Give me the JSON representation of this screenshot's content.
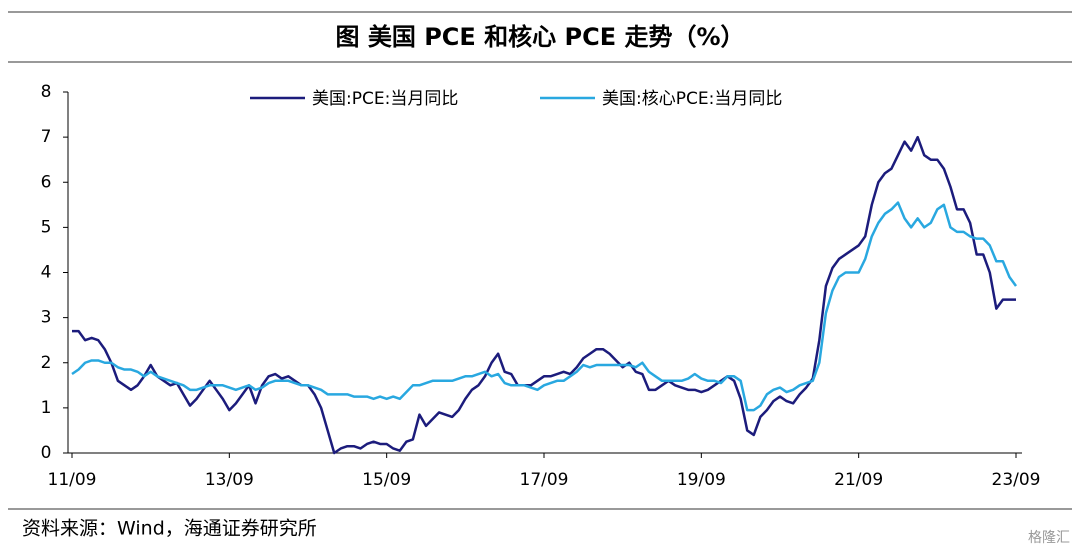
{
  "chart_data": {
    "type": "line",
    "title": "图  美国 PCE 和核心 PCE 走势（%）",
    "source": "资料来源：Wind，海通证券研究所",
    "watermark": "格隆汇",
    "categories": [
      "11/09",
      null,
      null,
      null,
      null,
      null,
      null,
      null,
      null,
      null,
      null,
      null,
      null,
      null,
      null,
      null,
      null,
      null,
      null,
      null,
      null,
      null,
      null,
      null,
      "13/09",
      null,
      null,
      null,
      null,
      null,
      null,
      null,
      null,
      null,
      null,
      null,
      null,
      null,
      null,
      null,
      null,
      null,
      null,
      null,
      null,
      null,
      null,
      null,
      "15/09",
      null,
      null,
      null,
      null,
      null,
      null,
      null,
      null,
      null,
      null,
      null,
      null,
      null,
      null,
      null,
      null,
      null,
      null,
      null,
      null,
      null,
      null,
      null,
      "17/09",
      null,
      null,
      null,
      null,
      null,
      null,
      null,
      null,
      null,
      null,
      null,
      null,
      null,
      null,
      null,
      null,
      null,
      null,
      null,
      null,
      null,
      null,
      null,
      "19/09",
      null,
      null,
      null,
      null,
      null,
      null,
      null,
      null,
      null,
      null,
      null,
      null,
      null,
      null,
      null,
      null,
      null,
      null,
      null,
      null,
      null,
      null,
      null,
      "21/09",
      null,
      null,
      null,
      null,
      null,
      null,
      null,
      null,
      null,
      null,
      null,
      null,
      null,
      null,
      null,
      null,
      null,
      null,
      null,
      null,
      null,
      null,
      null,
      "23/09"
    ],
    "series": [
      {
        "name": "美国:PCE:当月同比",
        "color": "#1c1c7c",
        "values": [
          2.7,
          2.7,
          2.5,
          2.55,
          2.5,
          2.3,
          2.0,
          1.6,
          1.5,
          1.4,
          1.5,
          1.7,
          1.95,
          1.7,
          1.6,
          1.5,
          1.55,
          1.3,
          1.05,
          1.2,
          1.4,
          1.6,
          1.4,
          1.2,
          0.95,
          1.1,
          1.3,
          1.5,
          1.1,
          1.5,
          1.7,
          1.75,
          1.65,
          1.7,
          1.6,
          1.5,
          1.5,
          1.3,
          1.0,
          0.5,
          0.0,
          0.1,
          0.15,
          0.15,
          0.1,
          0.2,
          0.25,
          0.2,
          0.2,
          0.1,
          0.05,
          0.25,
          0.3,
          0.85,
          0.6,
          0.75,
          0.9,
          0.85,
          0.8,
          0.95,
          1.2,
          1.4,
          1.5,
          1.7,
          2.0,
          2.2,
          1.8,
          1.75,
          1.5,
          1.5,
          1.5,
          1.6,
          1.7,
          1.7,
          1.75,
          1.8,
          1.75,
          1.9,
          2.1,
          2.2,
          2.3,
          2.3,
          2.2,
          2.05,
          1.9,
          2.0,
          1.8,
          1.75,
          1.4,
          1.4,
          1.5,
          1.6,
          1.5,
          1.45,
          1.4,
          1.4,
          1.35,
          1.4,
          1.5,
          1.6,
          1.7,
          1.6,
          1.2,
          0.5,
          0.4,
          0.8,
          0.95,
          1.15,
          1.25,
          1.15,
          1.1,
          1.3,
          1.45,
          1.65,
          2.5,
          3.7,
          4.1,
          4.3,
          4.4,
          4.5,
          4.6,
          4.8,
          5.5,
          6.0,
          6.2,
          6.3,
          6.6,
          6.9,
          6.7,
          7.0,
          6.6,
          6.5,
          6.5,
          6.3,
          5.9,
          5.4,
          5.4,
          5.1,
          4.4,
          4.4,
          4.0,
          3.2,
          3.4,
          3.4,
          3.4
        ]
      },
      {
        "name": "美国:核心PCE:当月同比",
        "color": "#29a8e0",
        "values": [
          1.75,
          1.85,
          2.0,
          2.05,
          2.05,
          2.0,
          2.0,
          1.9,
          1.85,
          1.85,
          1.8,
          1.7,
          1.8,
          1.7,
          1.65,
          1.6,
          1.55,
          1.5,
          1.4,
          1.4,
          1.45,
          1.5,
          1.5,
          1.5,
          1.45,
          1.4,
          1.45,
          1.5,
          1.4,
          1.45,
          1.55,
          1.6,
          1.6,
          1.6,
          1.55,
          1.5,
          1.5,
          1.45,
          1.4,
          1.3,
          1.3,
          1.3,
          1.3,
          1.25,
          1.25,
          1.25,
          1.2,
          1.25,
          1.2,
          1.25,
          1.2,
          1.35,
          1.5,
          1.5,
          1.55,
          1.6,
          1.6,
          1.6,
          1.6,
          1.65,
          1.7,
          1.7,
          1.75,
          1.8,
          1.7,
          1.75,
          1.55,
          1.5,
          1.5,
          1.5,
          1.45,
          1.4,
          1.5,
          1.55,
          1.6,
          1.6,
          1.7,
          1.8,
          1.95,
          1.9,
          1.95,
          1.95,
          1.95,
          1.95,
          1.95,
          1.95,
          1.9,
          2.0,
          1.8,
          1.7,
          1.6,
          1.6,
          1.6,
          1.6,
          1.65,
          1.75,
          1.65,
          1.6,
          1.6,
          1.55,
          1.7,
          1.7,
          1.6,
          0.95,
          0.95,
          1.05,
          1.3,
          1.4,
          1.45,
          1.35,
          1.4,
          1.5,
          1.55,
          1.6,
          2.0,
          3.1,
          3.6,
          3.9,
          4.0,
          4.0,
          4.0,
          4.3,
          4.8,
          5.1,
          5.3,
          5.4,
          5.55,
          5.2,
          5.0,
          5.2,
          5.0,
          5.1,
          5.4,
          5.5,
          5.0,
          4.9,
          4.9,
          4.8,
          4.75,
          4.75,
          4.6,
          4.25,
          4.25,
          3.9,
          3.7
        ]
      }
    ],
    "ylim": [
      0,
      8
    ],
    "yticks": [
      0,
      1,
      2,
      3,
      4,
      5,
      6,
      7,
      8
    ]
  }
}
